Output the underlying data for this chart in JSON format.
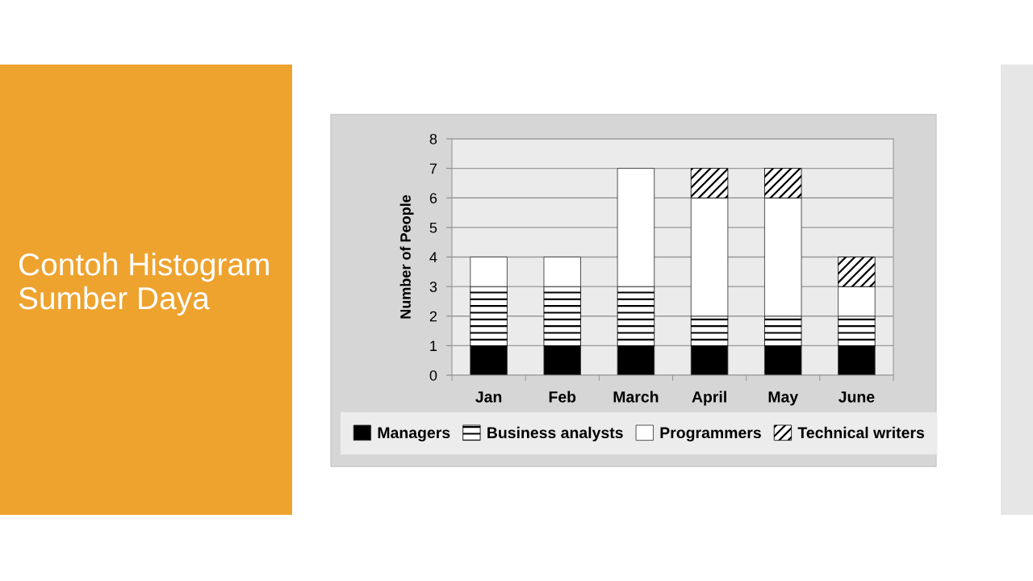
{
  "chart_data": {
    "type": "bar",
    "title": "Contoh Histogram\nSumber Daya",
    "ylabel": "Number of People",
    "categories": [
      "Jan",
      "Feb",
      "March",
      "April",
      "May",
      "June"
    ],
    "stacked": true,
    "series": [
      {
        "name": "Managers",
        "color": "#000000",
        "values": [
          1,
          1,
          1,
          1,
          1,
          1
        ]
      },
      {
        "name": "Business analysts",
        "color": "#000000",
        "values": [
          2,
          2,
          2,
          1,
          1,
          1
        ]
      },
      {
        "name": "Programmers",
        "color": "#ffffff",
        "values": [
          1,
          1,
          4,
          4,
          4,
          1
        ]
      },
      {
        "name": "Technical writers",
        "color": "#000000",
        "values": [
          0,
          0,
          0,
          1,
          1,
          1
        ]
      }
    ],
    "ylim": [
      0,
      8
    ],
    "yticks": [
      0,
      1,
      2,
      3,
      4,
      5,
      6,
      7,
      8
    ],
    "grid": "y",
    "legend": "bottom"
  }
}
